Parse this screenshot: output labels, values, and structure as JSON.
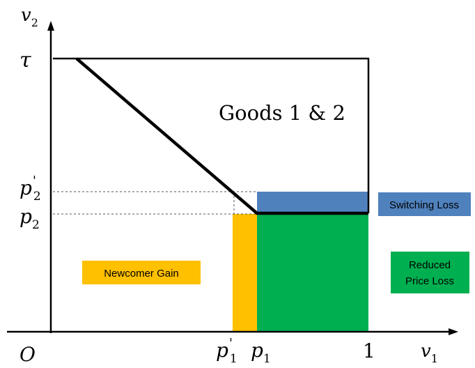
{
  "axes": {
    "y_label": {
      "base": "v",
      "sub": "2"
    },
    "x_label": {
      "base": "v",
      "sub": "1"
    },
    "origin": "O",
    "tau": "τ",
    "one": "1",
    "p2_prime": {
      "base": "p",
      "sub": "2",
      "sup": "'"
    },
    "p2": {
      "base": "p",
      "sub": "2"
    },
    "p1_prime": {
      "base": "p",
      "sub": "1",
      "sup": "'"
    },
    "p1": {
      "base": "p",
      "sub": "1"
    }
  },
  "regions": {
    "goods_label": "Goods 1 & 2"
  },
  "legend": {
    "switching_loss": "Switching Loss",
    "newcomer_gain": "Newcomer Gain",
    "reduced_price_loss_line1": "Reduced",
    "reduced_price_loss_line2": "Price Loss"
  },
  "colors": {
    "switching_loss": "#4f81bd",
    "newcomer_gain": "#ffc000",
    "reduced_price_loss": "#00b050",
    "axis": "#000000"
  }
}
